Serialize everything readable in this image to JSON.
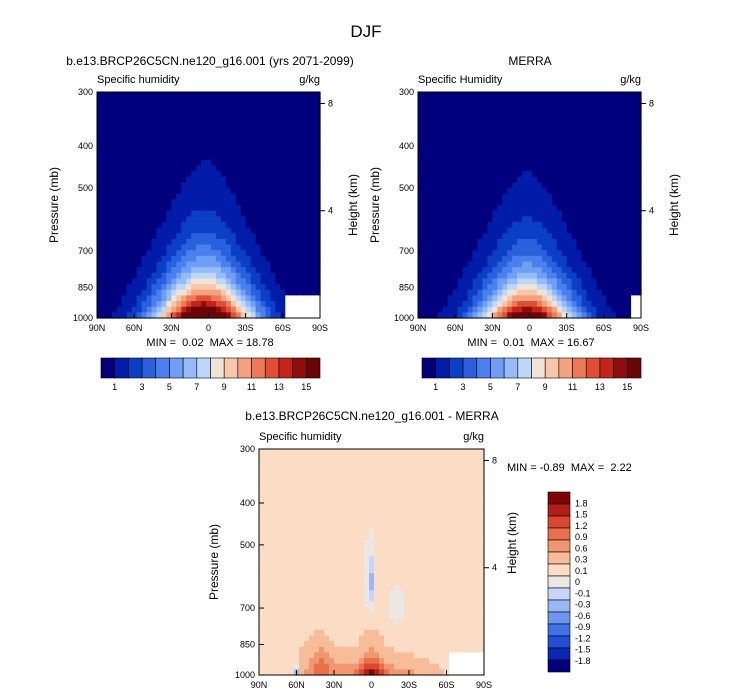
{
  "figure_title": "DJF",
  "chart_data": [
    {
      "type": "heatmap",
      "title": "b.e13.BRCP26C5CN.ne120_g16.001 (yrs 2071-2099)",
      "left_label": "Specific humidity",
      "right_label": "g/kg",
      "ylabel": "Pressure (mb)",
      "y2label": "Height (km)",
      "x_ticks": [
        "90N",
        "60N",
        "30N",
        "0",
        "30S",
        "60S",
        "90S"
      ],
      "y_ticks": [
        "300",
        "400",
        "500",
        "700",
        "850",
        "1000"
      ],
      "y2_ticks": [
        "8",
        "4"
      ],
      "ylim": [
        1000,
        300
      ],
      "min_max_text": "MIN =  0.02  MAX = 18.78",
      "min": 0.02,
      "max": 18.78,
      "field": {
        "peak_lat": 3,
        "peak_value": 18.8,
        "background": 0.5,
        "lat_spread": 28,
        "height_scale": 0.23,
        "antarctic_mask_lat": -60
      },
      "colorbar_labels": [
        "1",
        "3",
        "5",
        "7",
        "9",
        "11",
        "13",
        "15"
      ]
    },
    {
      "type": "heatmap",
      "title": "MERRA",
      "left_label": "Specific Humidity",
      "right_label": "g/kg",
      "ylabel": "Pressure (mb)",
      "y2label": "Height (km)",
      "x_ticks": [
        "90N",
        "60N",
        "30N",
        "0",
        "30S",
        "60S",
        "90S"
      ],
      "y_ticks": [
        "300",
        "400",
        "500",
        "700",
        "850",
        "1000"
      ],
      "y2_ticks": [
        "8",
        "4"
      ],
      "ylim": [
        1000,
        300
      ],
      "min_max_text": "MIN =  0.01  MAX = 16.67",
      "min": 0.01,
      "max": 16.67,
      "field": {
        "peak_lat": 2,
        "peak_value": 16.7,
        "background": 0.5,
        "lat_spread": 27,
        "height_scale": 0.22,
        "antarctic_mask_lat": -80
      },
      "colorbar_labels": [
        "1",
        "3",
        "5",
        "7",
        "9",
        "11",
        "13",
        "15"
      ]
    },
    {
      "type": "heatmap",
      "title": "b.e13.BRCP26C5CN.ne120_g16.001 - MERRA",
      "left_label": "Specific humidity",
      "right_label": "g/kg",
      "ylabel": "Pressure (mb)",
      "y2label": "Height (km)",
      "x_ticks": [
        "90N",
        "60N",
        "30N",
        "0",
        "30S",
        "60S",
        "90S"
      ],
      "y_ticks": [
        "300",
        "400",
        "500",
        "700",
        "850",
        "1000"
      ],
      "y2_ticks": [
        "8",
        "4"
      ],
      "ylim": [
        1000,
        300
      ],
      "min_max_text": "MIN = -0.89  MAX =  2.22",
      "min": -0.89,
      "max": 2.22,
      "colorbar_labels": [
        "1.8",
        "1.5",
        "1.2",
        "0.9",
        "0.6",
        "0.3",
        "0.1",
        "0",
        "-0.1",
        "-0.3",
        "-0.6",
        "-0.9",
        "-1.2",
        "-1.5",
        "-1.8"
      ]
    }
  ],
  "colors": {
    "q_scale": [
      "#00007e",
      "#001ca8",
      "#0a3fc6",
      "#2a60dc",
      "#4a80ee",
      "#6e9ff5",
      "#95bcf8",
      "#bcd7fa",
      "#f2e3d6",
      "#f8c6a8",
      "#f4a27e",
      "#ec7a56",
      "#e04f33",
      "#c4231b",
      "#8e0d0d",
      "#6a0606"
    ],
    "diff_scale": [
      "#00007e",
      "#0a26b4",
      "#1f4fd2",
      "#3f72e6",
      "#6c96f0",
      "#98b7f5",
      "#c5d6f9",
      "#ece7e3",
      "#fbdcc4",
      "#f7bd98",
      "#f2966f",
      "#e9704d",
      "#d9472e",
      "#b51d17",
      "#7c0505"
    ],
    "missing": "#ffffff"
  }
}
